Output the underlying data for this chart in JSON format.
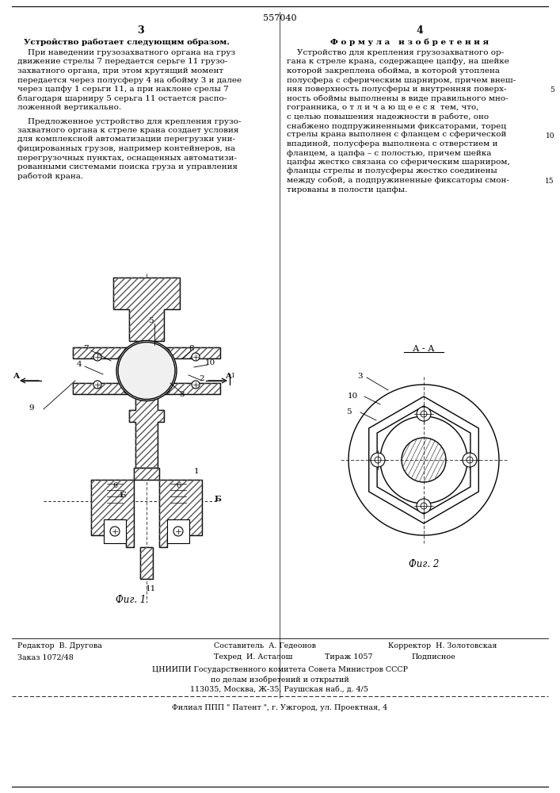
{
  "patent_number": "557040",
  "page_left_num": "3",
  "page_right_num": "4",
  "heading_left": "Устройство работает следующим образом.",
  "para1_lines": [
    "    При наведении грузозахватного органа на груз",
    "движение стрелы 7 передается серьге 11 грузо-",
    "захватного органа, при этом крутящий момент",
    "передается через полусферу 4 на обойму 3 и далее",
    "через цапфу 1 серьги 11, а при наклоне срелы 7",
    "благодаря шарниру 5 серьга 11 остается распо-",
    "ложенной вертикально."
  ],
  "para2_lines": [
    "    Предложенное устройство для крепления грузо-",
    "захватного органа к стреле крана создает условия",
    "для комплексной автоматизации перегрузки уни-",
    "фицированных грузов, например контейнеров, на",
    "перегрузочных пунктах, оснащенных автоматизи-",
    "рованными системами поиска груза и управления",
    "работой крана."
  ],
  "heading_right_title": "Ф о р м у л а   и з о б р е т е н и я",
  "formula_lines": [
    "    Устройство для крепления грузозахватного ор-",
    "гана к стреле крана, содержащее цапфу, на шейке",
    "которой закреплена обойма, в которой утоплена",
    "полусфера с сферическим шарниром, причем внеш-",
    "няя поверхность полусферы и внутренняя поверх-",
    "ность обоймы выполнены в виде правильного мно-",
    "гогранника, о т л и ч а ю щ е е с я  тем, что,",
    "с целью повышения надежности в работе, оно",
    "снабжено подпружиненными фиксаторами, торец",
    "стрелы крана выполнен с фланцем с сферической",
    "впадиной, полусфера выполнена с отверстием и",
    "фланцем, а цапфа – с полостью, причем шейка",
    "цапфы жестко связана со сферическим шарниром,",
    "фланцы стрелы и полусферы жестко соединены",
    "между собой, а подпружиненные фиксаторы смон-",
    "тированы в полости цапфы."
  ],
  "fig1_label": "Фиг. 1",
  "fig2_label": "Фиг. 2",
  "fig_aa_label": "А - А",
  "footer_editor": "Редактор  В. Другова",
  "footer_compiler": "Составитель  А. Гедеонов",
  "footer_corrector": "Корректор  Н. Золотовская",
  "footer_order": "Заказ 1072/48",
  "footer_tech": "Техред  И. Асталош",
  "footer_circulation": "Тираж 1057",
  "footer_signed": "Подписное",
  "footer_org": "ЦНИИПИ Государственного комитета Совета Министров СССР",
  "footer_dept": "по делам изобретений и открытий",
  "footer_address": "113035, Москва, Ж-35, Раушская наб., д. 4/5",
  "footer_branch": "Филиал ППП \" Патент \", г. Ужгород, ул. Проектная, 4",
  "hatch_color": "#555555",
  "bg_color": "#ffffff",
  "text_color": "#000000"
}
